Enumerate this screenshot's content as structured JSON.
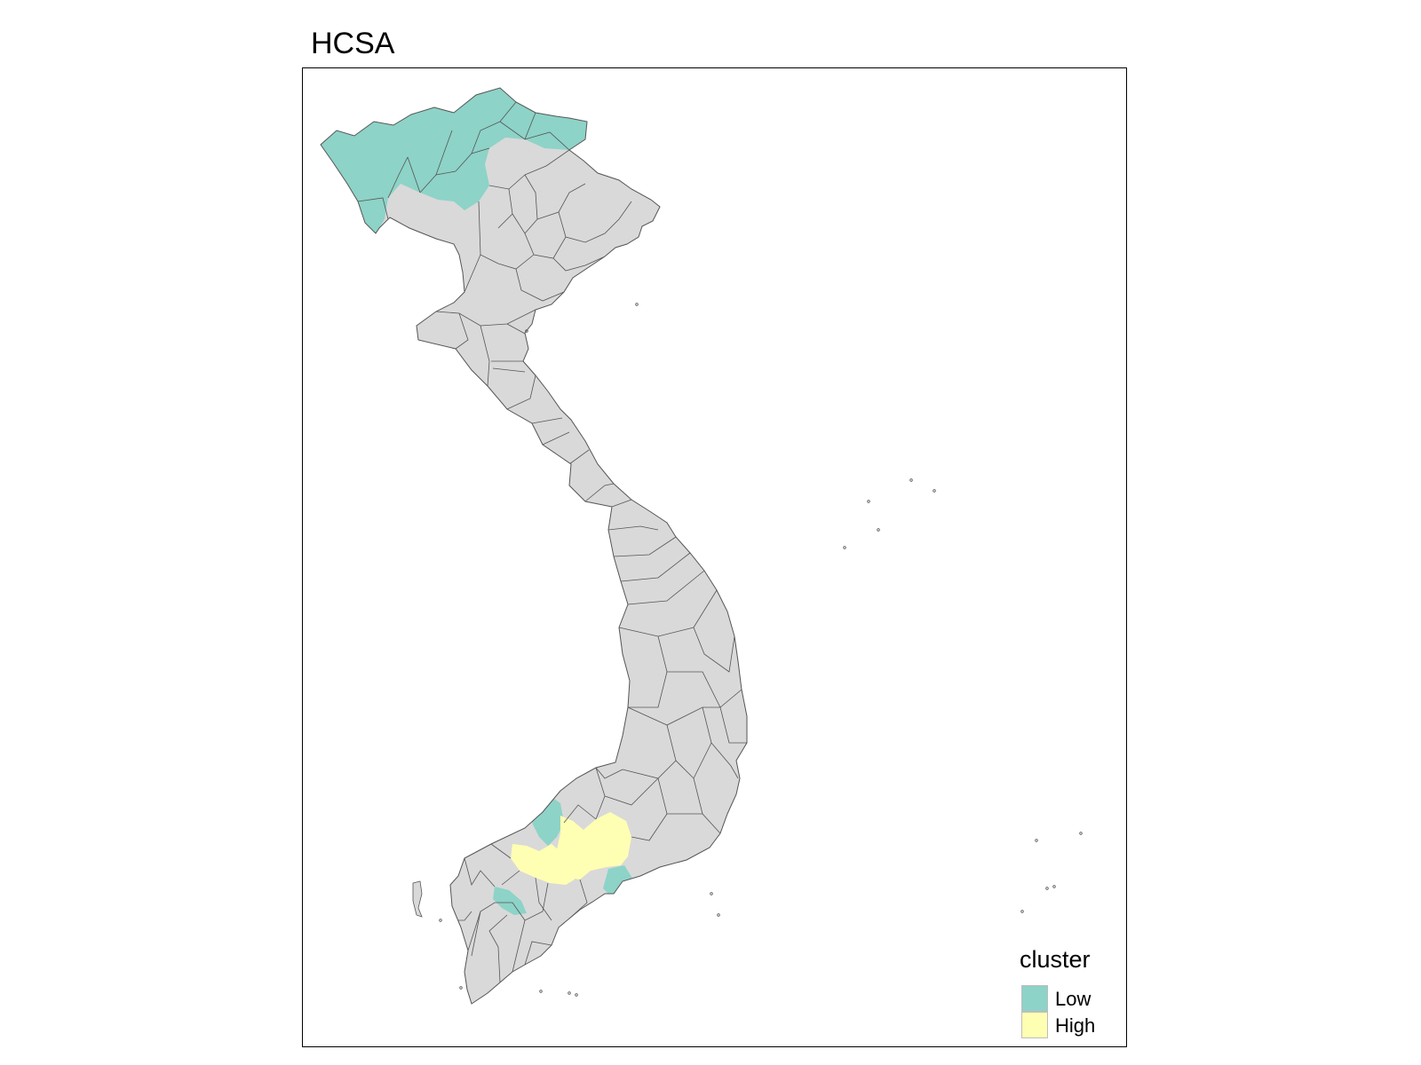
{
  "title": "HCSA",
  "colors": {
    "default_fill": "#d9d9d9",
    "border": "#555555",
    "low": "#8dd3c7",
    "high": "#ffffb3"
  },
  "legend": {
    "title": "cluster",
    "items": [
      {
        "label": "Low",
        "color": "#8dd3c7"
      },
      {
        "label": "High",
        "color": "#ffffb3"
      }
    ]
  }
}
